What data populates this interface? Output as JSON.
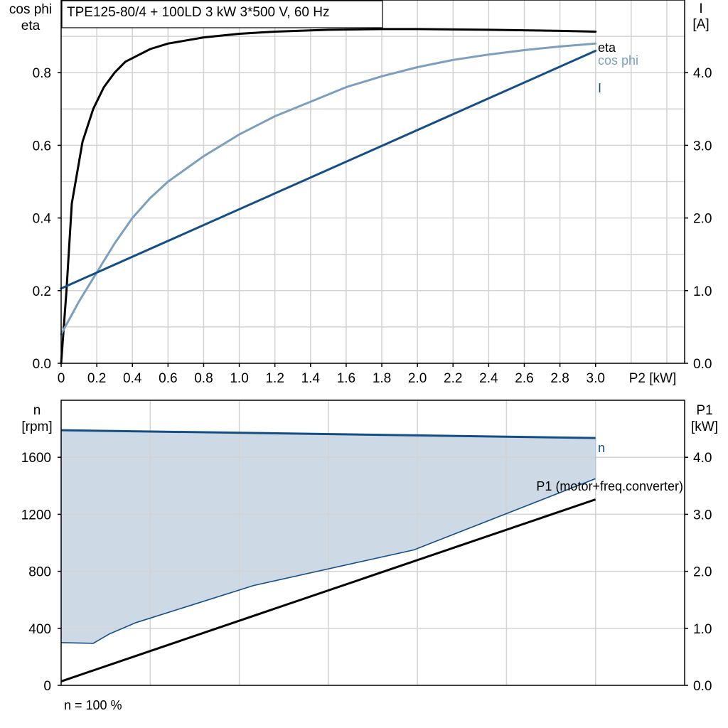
{
  "chart_data": [
    {
      "type": "line",
      "title": "TPE125-80/4 + 100LD   3 kW   3*500 V, 60 Hz",
      "xlabel": "P2 [kW]",
      "ylabel_left": [
        "cos phi",
        "eta"
      ],
      "ylabel_right": [
        "I",
        "[A]"
      ],
      "xlim": [
        0,
        3.5
      ],
      "ylim_left": [
        0,
        1.0
      ],
      "ylim_right": [
        0,
        5.0
      ],
      "x_ticks": [
        "0",
        "0.2",
        "0.4",
        "0.6",
        "0.8",
        "1.0",
        "1.2",
        "1.4",
        "1.6",
        "1.8",
        "2.0",
        "2.2",
        "2.4",
        "2.6",
        "2.8",
        "3.0"
      ],
      "y_ticks_left": [
        "0.0",
        "0.2",
        "0.4",
        "0.6",
        "0.8"
      ],
      "y_ticks_right": [
        "0.0",
        "1.0",
        "2.0",
        "3.0",
        "4.0"
      ],
      "grid": true,
      "series": [
        {
          "name": "eta",
          "axis": "left",
          "color": "#000000",
          "x": [
            0,
            0.03,
            0.06,
            0.12,
            0.18,
            0.24,
            0.3,
            0.36,
            0.4,
            0.5,
            0.6,
            0.8,
            1.0,
            1.2,
            1.5,
            1.8,
            2.0,
            2.4,
            2.8,
            3.0
          ],
          "y": [
            0,
            0.2,
            0.44,
            0.61,
            0.7,
            0.76,
            0.8,
            0.83,
            0.84,
            0.865,
            0.88,
            0.897,
            0.907,
            0.913,
            0.918,
            0.92,
            0.92,
            0.918,
            0.915,
            0.913
          ]
        },
        {
          "name": "cos phi",
          "axis": "left",
          "color": "#7d9fbe",
          "x": [
            0,
            0.1,
            0.2,
            0.3,
            0.4,
            0.5,
            0.6,
            0.8,
            1.0,
            1.2,
            1.4,
            1.6,
            1.8,
            2.0,
            2.2,
            2.4,
            2.6,
            2.8,
            3.0
          ],
          "y": [
            0.08,
            0.17,
            0.25,
            0.33,
            0.4,
            0.455,
            0.5,
            0.57,
            0.63,
            0.68,
            0.72,
            0.76,
            0.79,
            0.815,
            0.835,
            0.85,
            0.862,
            0.872,
            0.88
          ]
        },
        {
          "name": "I",
          "axis": "right",
          "color": "#154e85",
          "x": [
            0,
            3.0
          ],
          "y": [
            1.03,
            4.3
          ]
        }
      ]
    },
    {
      "type": "line",
      "xlim": [
        0,
        3.5
      ],
      "ylabel_left": [
        "n",
        "[rpm]"
      ],
      "ylabel_right": [
        "P1",
        "[kW]"
      ],
      "ylim_left": [
        0,
        2000
      ],
      "ylim_right": [
        0,
        5.0
      ],
      "y_ticks_left": [
        "0",
        "400",
        "800",
        "1200",
        "1600"
      ],
      "y_ticks_right": [
        "0.0",
        "1.0",
        "2.0",
        "3.0",
        "4.0"
      ],
      "grid": true,
      "footnote": "n = 100 %",
      "series": [
        {
          "name": "n",
          "axis": "left",
          "color": "#154e85",
          "x": [
            0,
            3.0
          ],
          "y": [
            1790,
            1735
          ]
        },
        {
          "name": "P1 (motor+freq.converter)",
          "axis": "right",
          "color": "#000000",
          "x": [
            0,
            3.0
          ],
          "y": [
            0.07,
            3.26
          ]
        },
        {
          "name": "",
          "axis": "left",
          "color": "#154e85",
          "role": "range-lower",
          "x": [
            0,
            0.18,
            0.27,
            0.42,
            1.08,
            1.98,
            3.0
          ],
          "y": [
            300,
            295,
            360,
            440,
            700,
            950,
            1450
          ]
        }
      ],
      "fill_color": "#cdd9e5"
    }
  ]
}
